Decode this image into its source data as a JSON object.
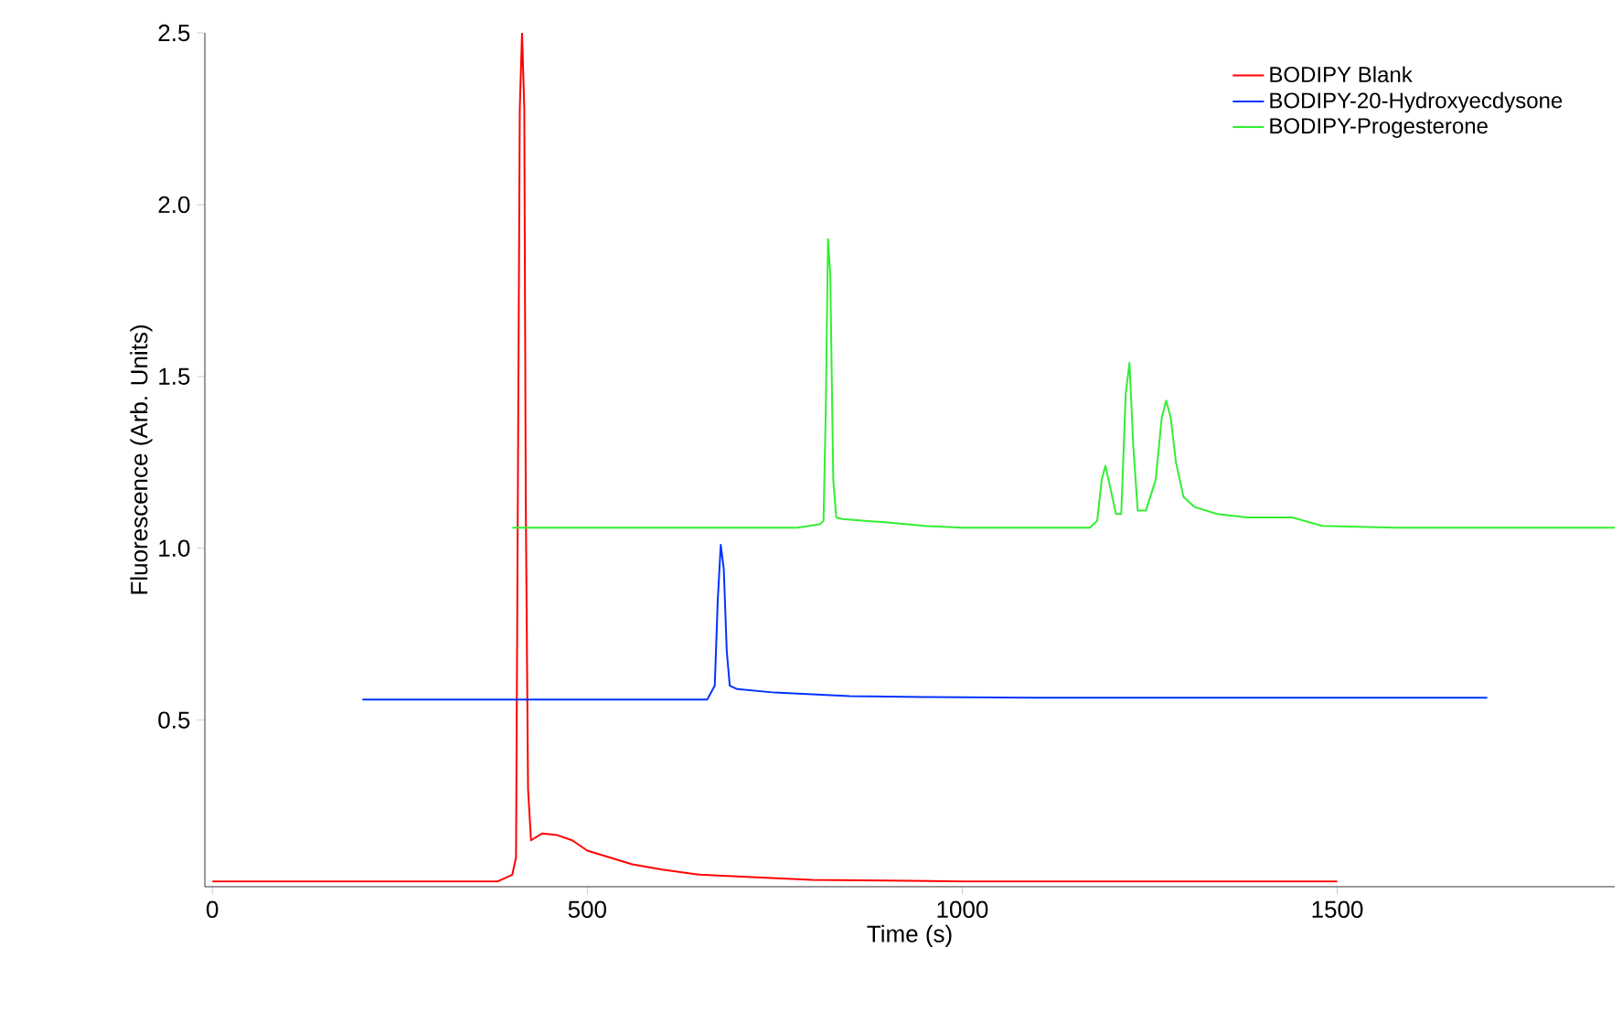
{
  "chart_data": {
    "type": "line",
    "xlabel": "Time (s)",
    "ylabel": "Fluorescence (Arb. Units)",
    "xlim": [
      -10,
      1870
    ],
    "ylim": [
      0.015,
      2.5
    ],
    "xticks": [
      0,
      500,
      1000,
      1500
    ],
    "yticks": [
      0.5,
      {
        "value": 1,
        "label": "1.0"
      },
      1.5,
      {
        "value": 2,
        "label": "2.0"
      },
      2.5
    ],
    "grid": false,
    "legend": "top right",
    "marker": "none",
    "line_style": "solid",
    "series": [
      {
        "name": "BODIPY Blank",
        "color": "#ff0000",
        "x": [
          0,
          200,
          380,
          400,
          405,
          410,
          413,
          416,
          418,
          421,
          425,
          440,
          460,
          480,
          500,
          530,
          560,
          600,
          650,
          700,
          800,
          900,
          1000,
          1200,
          1500
        ],
        "values": [
          0.03,
          0.03,
          0.03,
          0.05,
          0.1,
          2.28,
          2.5,
          2.28,
          1.13,
          0.3,
          0.15,
          0.17,
          0.165,
          0.15,
          0.12,
          0.1,
          0.08,
          0.065,
          0.05,
          0.045,
          0.035,
          0.033,
          0.03,
          0.03,
          0.03
        ]
      },
      {
        "name": "BODIPY-20-Hydroxyecdysone",
        "color": "#0033ff",
        "x": [
          200,
          300,
          400,
          500,
          600,
          660,
          670,
          674,
          678,
          682,
          686,
          690,
          700,
          750,
          800,
          850,
          950,
          1100,
          1300,
          1500,
          1700
        ],
        "values": [
          0.56,
          0.56,
          0.56,
          0.56,
          0.56,
          0.56,
          0.6,
          0.85,
          1.01,
          0.94,
          0.7,
          0.6,
          0.59,
          0.58,
          0.575,
          0.57,
          0.567,
          0.565,
          0.565,
          0.565,
          0.565
        ],
        "line_style": "solid"
      },
      {
        "name": "BODIPY-Progesterone",
        "color": "#33ee33",
        "x": [
          400,
          600,
          780,
          810,
          815,
          818,
          821,
          824,
          828,
          832,
          840,
          870,
          900,
          950,
          1000,
          1100,
          1170,
          1180,
          1186,
          1191,
          1197,
          1205,
          1212,
          1218,
          1223,
          1228,
          1234,
          1245,
          1258,
          1266,
          1272,
          1278,
          1285,
          1295,
          1310,
          1340,
          1380,
          1440,
          1480,
          1580,
          1700,
          1870
        ],
        "values": [
          1.06,
          1.06,
          1.06,
          1.07,
          1.08,
          1.4,
          1.9,
          1.8,
          1.2,
          1.09,
          1.085,
          1.08,
          1.075,
          1.065,
          1.06,
          1.06,
          1.06,
          1.08,
          1.2,
          1.24,
          1.18,
          1.1,
          1.1,
          1.45,
          1.54,
          1.3,
          1.11,
          1.11,
          1.2,
          1.38,
          1.43,
          1.38,
          1.25,
          1.15,
          1.12,
          1.1,
          1.09,
          1.09,
          1.065,
          1.06,
          1.06,
          1.06
        ]
      }
    ]
  }
}
